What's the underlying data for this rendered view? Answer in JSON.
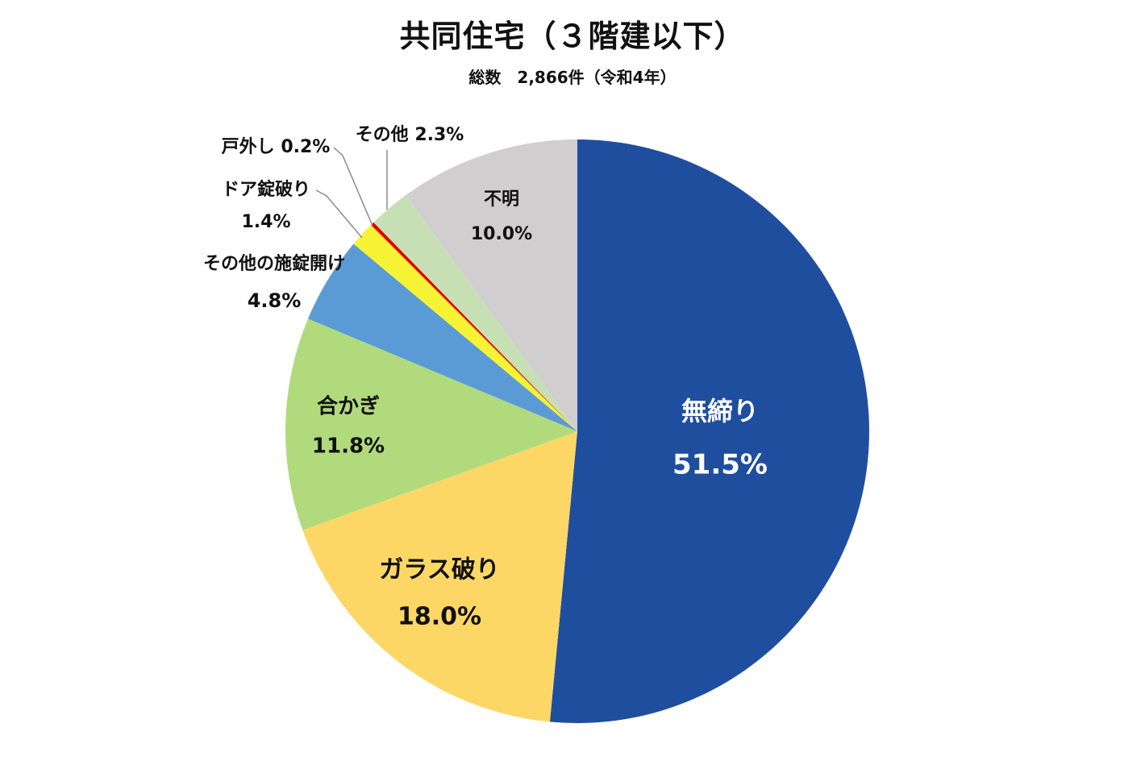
{
  "title": "共同住宅（３階建以下）",
  "subtitle": "総数　2,866件（令和4年）",
  "chart_data": {
    "type": "pie",
    "title": "共同住宅（３階建以下）",
    "subtitle": "総数　2,866件（令和4年）",
    "start": "12 o'clock, clockwise",
    "slices": [
      {
        "name": "無締り",
        "value": 51.5,
        "label": "51.5%",
        "color": "#1f4e9f"
      },
      {
        "name": "ガラス破り",
        "value": 18.0,
        "label": "18.0%",
        "color": "#fcd766"
      },
      {
        "name": "合かぎ",
        "value": 11.8,
        "label": "11.8%",
        "color": "#b1da7d"
      },
      {
        "name": "その他の施錠開け",
        "value": 4.8,
        "label": "4.8%",
        "color": "#5b9bd5"
      },
      {
        "name": "ドア錠破り",
        "value": 1.4,
        "label": "1.4%",
        "color": "#f5f334"
      },
      {
        "name": "戸外し",
        "value": 0.2,
        "label": "0.2%",
        "color": "#e00000"
      },
      {
        "name": "その他",
        "value": 2.3,
        "label": "2.3%",
        "color": "#c6e0b4"
      },
      {
        "name": "不明",
        "value": 10.0,
        "label": "10.0%",
        "color": "#d0cece"
      }
    ]
  }
}
